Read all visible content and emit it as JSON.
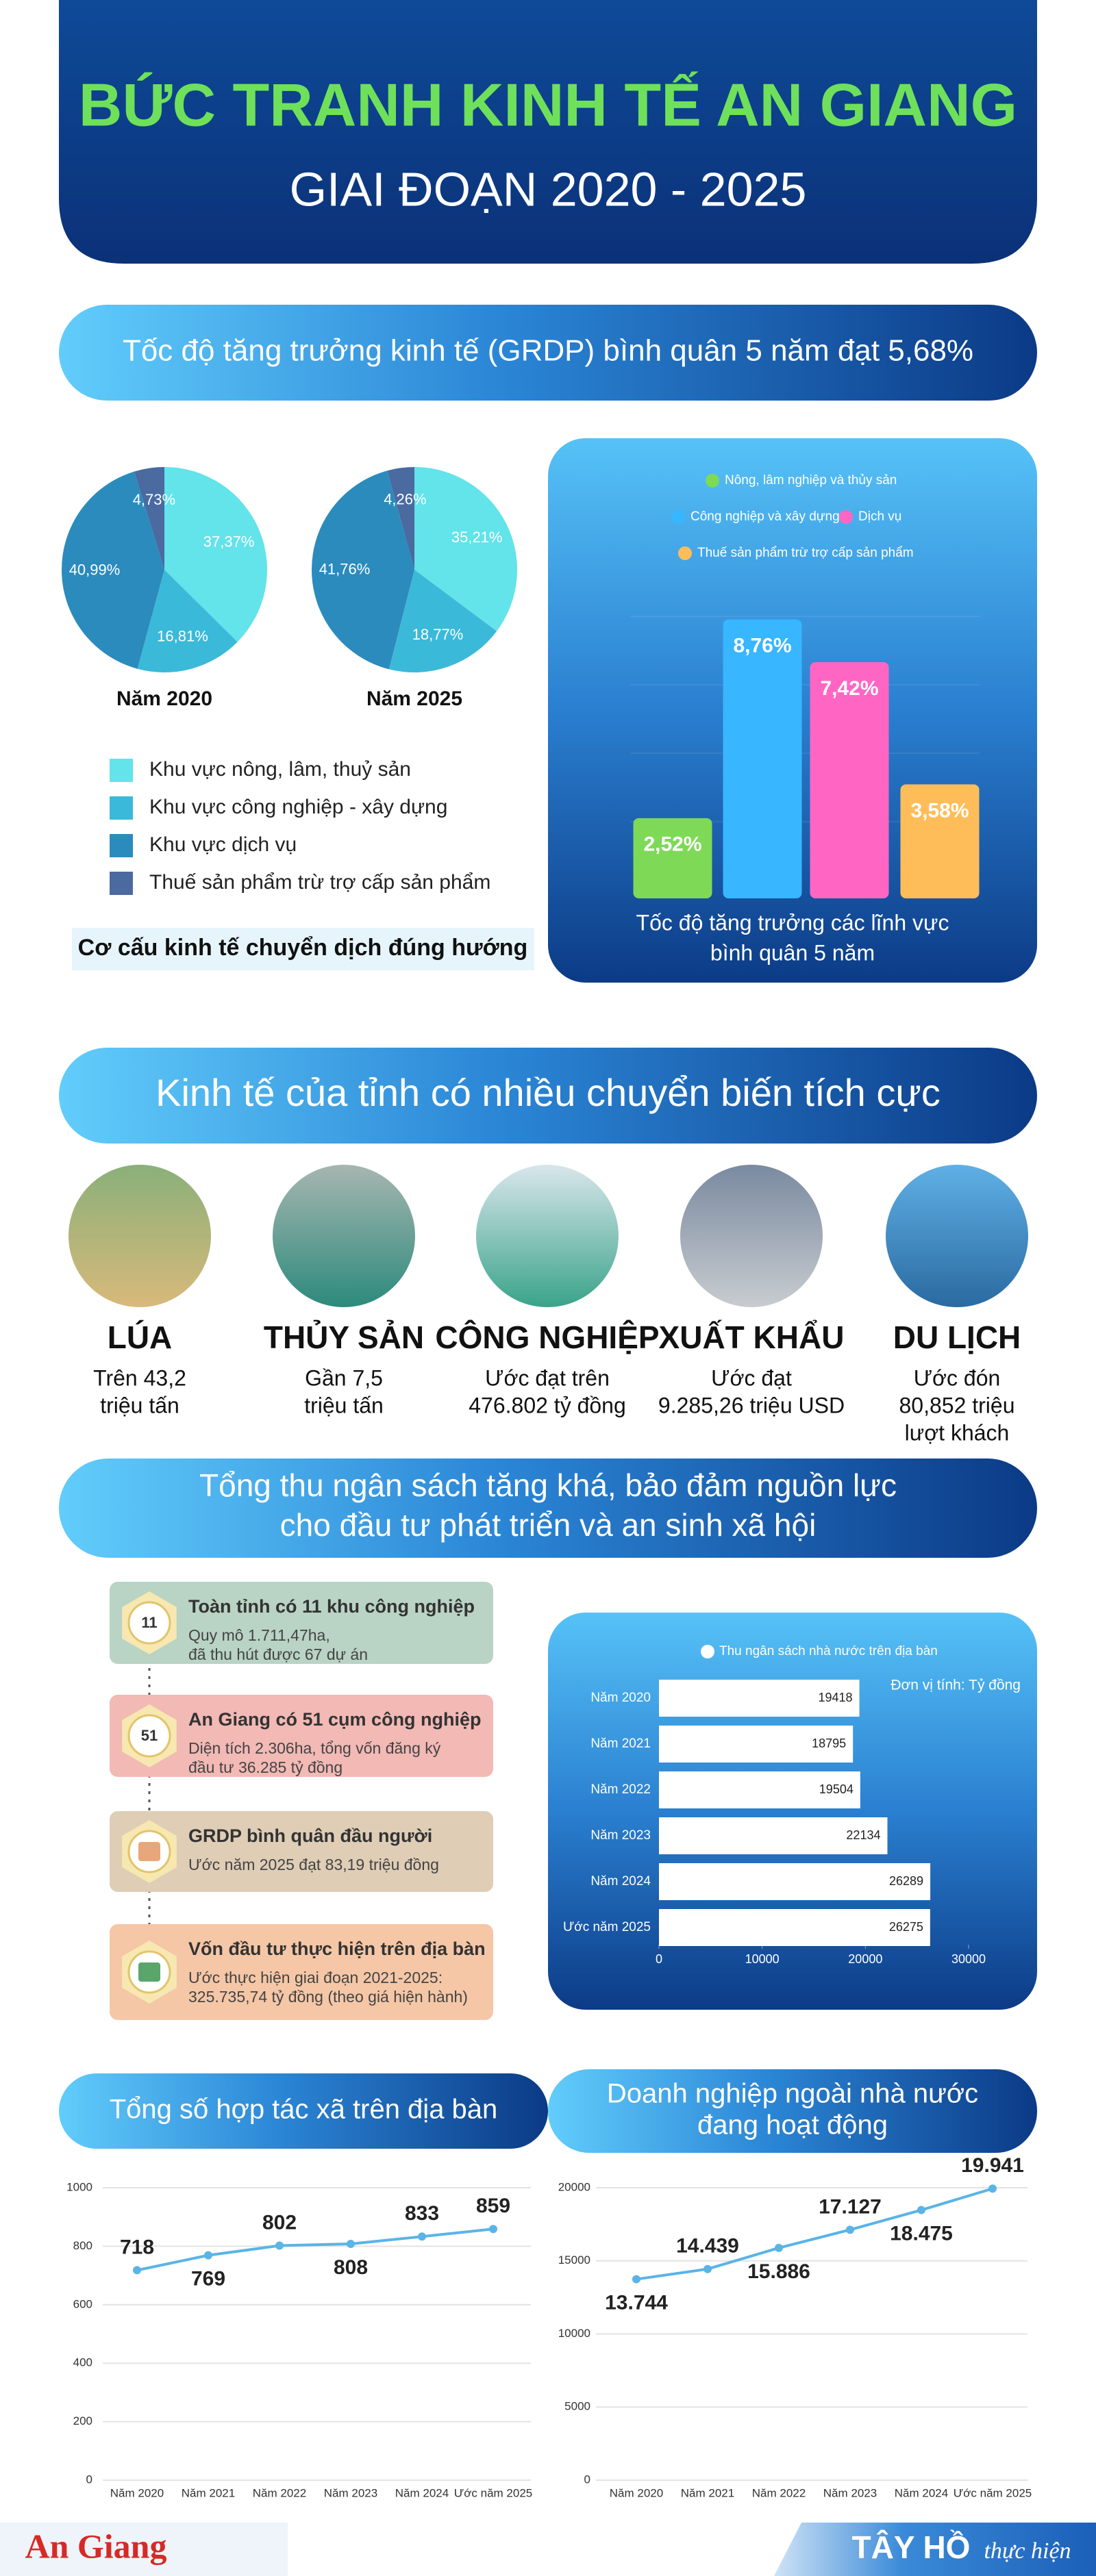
{
  "header": {
    "title": "BỨC TRANH KINH TẾ AN GIANG",
    "subtitle": "GIAI ĐOẠN 2020 - 2025"
  },
  "banner_growth": "Tốc độ tăng trưởng kinh tế (GRDP) bình quân 5 năm đạt 5,68%",
  "structure_caption": "Cơ cấu kinh tế chuyển dịch đúng hướng",
  "banner_economy": "Kinh tế của tỉnh có nhiều chuyển biến tích cực",
  "highlights": [
    {
      "title": "LÚA",
      "lines": [
        "Trên 43,2",
        "triệu tấn"
      ]
    },
    {
      "title": "THỦY SẢN",
      "lines": [
        "Gần 7,5",
        "triệu tấn"
      ]
    },
    {
      "title": "CÔNG NGHIỆP",
      "lines": [
        "Ước đạt trên",
        "476.802 tỷ đồng"
      ]
    },
    {
      "title": "XUẤT KHẨU",
      "lines": [
        "Ước đạt",
        "9.285,26 triệu USD"
      ]
    },
    {
      "title": "DU LỊCH",
      "lines": [
        "Ước đón",
        "80,852 triệu",
        "lượt khách"
      ]
    }
  ],
  "banner_budget": [
    "Tổng thu ngân sách tăng khá, bảo đảm nguồn lực",
    "cho đầu tư phát triển và an sinh xã hội"
  ],
  "facts": [
    {
      "badge": "11",
      "title": "Toàn tỉnh có 11 khu công nghiệp",
      "lines": [
        "Quy mô 1.711,47ha,",
        "đã thu hút được 67 dự án"
      ]
    },
    {
      "badge": "51",
      "title": "An Giang có 51 cụm công nghiệp",
      "lines": [
        "Diện tích 2.306ha, tổng vốn đăng ký",
        "đầu tư 36.285 tỷ đồng"
      ]
    },
    {
      "title": "GRDP bình quân đầu người",
      "lines": [
        "Ước năm 2025 đạt 83,19 triệu đồng"
      ]
    },
    {
      "title": "Vốn đầu tư thực hiện trên địa bàn",
      "lines": [
        "Ước thực hiện giai đoạn 2021-2025:",
        "325.735,74 tỷ đồng (theo giá hiện hành)"
      ]
    }
  ],
  "footer": {
    "logo": "An Giang",
    "credit_name": "TÂY HỒ",
    "credit_role": "thực hiện"
  },
  "chart_data": [
    {
      "type": "pie",
      "categories": [
        "Khu vực nông, lâm, thuỷ sản",
        "Khu vực công nghiệp - xây dựng",
        "Khu vực dịch vụ",
        "Thuế sản phẩm trừ trợ cấp sản phẩm"
      ],
      "colors": [
        "#63e3ea",
        "#3bb9d9",
        "#2b8bbd",
        "#4a6aa0"
      ],
      "series": [
        {
          "name": "Năm 2020",
          "values": [
            37.37,
            16.81,
            40.99,
            4.73
          ],
          "value_labels": [
            "37,37%",
            "16,81%",
            "40,99%",
            "4,73%"
          ]
        },
        {
          "name": "Năm 2025",
          "values": [
            35.21,
            18.77,
            41.76,
            4.26
          ],
          "value_labels": [
            "35,21%",
            "18,77%",
            "41,76%",
            "4,26%"
          ]
        }
      ]
    },
    {
      "type": "bar",
      "title": [
        "Tốc độ tăng trưởng các lĩnh vực",
        "bình quân 5 năm"
      ],
      "categories": [
        "Nông, lâm nghiệp và thủy sản",
        "Công nghiệp và xây dựng",
        "Dịch vụ",
        "Thuế sản phẩm trừ trợ cấp sản phẩm"
      ],
      "colors": [
        "#7ed957",
        "#38b6ff",
        "#ff66c4",
        "#ffbd59"
      ],
      "values": [
        2.52,
        8.76,
        7.42,
        3.58
      ],
      "value_labels": [
        "2,52%",
        "8,76%",
        "7,42%",
        "3,58%"
      ]
    },
    {
      "type": "hbar",
      "title": "Thu ngân sách nhà nước trên địa bàn",
      "unit": "Đơn vị tính: Tỷ đồng",
      "categories": [
        "Năm 2020",
        "Năm 2021",
        "Năm 2022",
        "Năm 2023",
        "Năm 2024",
        "Ước năm 2025"
      ],
      "values": [
        19418,
        18795,
        19504,
        22134,
        26289,
        26275
      ],
      "color": "#ffffff",
      "xlim": [
        0,
        30000
      ],
      "xticks": [
        0,
        10000,
        20000,
        30000
      ]
    },
    {
      "type": "line",
      "title": [
        "Tổng số hợp tác xã trên địa bàn"
      ],
      "categories": [
        "Năm 2020",
        "Năm 2021",
        "Năm 2022",
        "Năm 2023",
        "Năm 2024",
        "Ước năm 2025"
      ],
      "values": [
        718,
        769,
        802,
        808,
        833,
        859
      ],
      "color": "#5ab4e6",
      "ylim": [
        0,
        1000
      ],
      "yticks": [
        0,
        200,
        400,
        600,
        800,
        1000
      ],
      "grid": true
    },
    {
      "type": "line",
      "title": [
        "Doanh nghiệp ngoài nhà nước",
        "đang hoạt động"
      ],
      "categories": [
        "Năm 2020",
        "Năm 2021",
        "Năm 2022",
        "Năm 2023",
        "Năm 2024",
        "Ước năm 2025"
      ],
      "values": [
        13744,
        14439,
        15886,
        17127,
        18475,
        19941
      ],
      "value_labels": [
        "13.744",
        "14.439",
        "15.886",
        "17.127",
        "18.475",
        "19.941"
      ],
      "color": "#5ab4e6",
      "ylim": [
        0,
        20000
      ],
      "yticks": [
        0,
        5000,
        10000,
        15000,
        20000
      ],
      "grid": true
    }
  ]
}
